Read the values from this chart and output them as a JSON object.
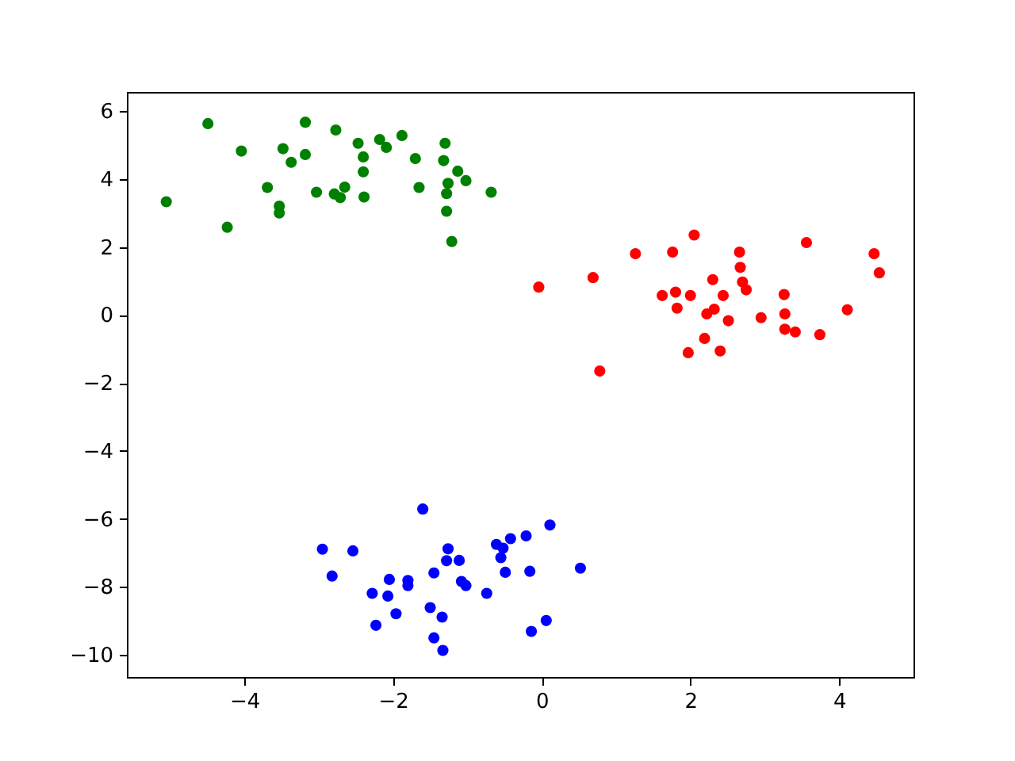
{
  "chart_data": {
    "type": "scatter",
    "xlim": [
      -5.58,
      5.0
    ],
    "ylim": [
      -10.65,
      6.56
    ],
    "xticks": [
      -4,
      -2,
      0,
      2,
      4
    ],
    "yticks": [
      -10,
      -8,
      -6,
      -4,
      -2,
      0,
      2,
      4,
      6
    ],
    "grid": false,
    "legend": false,
    "marker": "circle",
    "series": [
      {
        "color": "#008000",
        "x": [
          -5.05,
          -4.49,
          -4.04,
          -4.23,
          -3.69,
          -3.53,
          -3.53,
          -3.48,
          -3.37,
          -3.18,
          -3.18,
          -3.03,
          -2.77,
          -2.79,
          -2.71,
          -2.65,
          -2.47,
          -2.4,
          -2.4,
          -2.39,
          -2.18,
          -2.09,
          -1.88,
          -1.7,
          -1.65,
          -1.3,
          -1.32,
          -1.13,
          -1.02,
          -1.26,
          -1.28,
          -1.28,
          -1.21,
          -0.68
        ],
        "values": [
          3.33,
          5.63,
          4.82,
          2.58,
          3.75,
          3.2,
          3.0,
          4.89,
          4.49,
          5.67,
          4.72,
          3.61,
          5.44,
          3.56,
          3.45,
          3.76,
          5.05,
          4.65,
          4.21,
          3.47,
          5.16,
          4.93,
          5.28,
          4.6,
          3.75,
          5.05,
          4.54,
          4.23,
          3.95,
          3.87,
          3.57,
          3.05,
          2.16,
          3.61
        ]
      },
      {
        "color": "#ff0000",
        "x": [
          -0.04,
          0.69,
          1.26,
          0.78,
          1.76,
          2.05,
          1.62,
          1.8,
          2.0,
          1.82,
          2.3,
          2.44,
          2.32,
          2.22,
          2.51,
          2.19,
          1.97,
          2.4,
          2.66,
          2.67,
          2.7,
          2.75,
          2.95,
          3.26,
          3.27,
          3.27,
          3.41,
          3.56,
          3.74,
          4.11,
          4.47,
          4.54
        ],
        "values": [
          0.82,
          1.1,
          1.8,
          -1.65,
          1.85,
          2.35,
          0.57,
          0.67,
          0.57,
          0.2,
          1.04,
          0.57,
          0.17,
          0.03,
          -0.17,
          -0.69,
          -1.11,
          -1.06,
          1.85,
          1.4,
          0.97,
          0.74,
          -0.08,
          0.6,
          0.03,
          -0.42,
          -0.5,
          2.13,
          -0.58,
          0.15,
          1.8,
          1.24
        ]
      },
      {
        "color": "#0000ff",
        "x": [
          -1.6,
          -2.95,
          -2.54,
          -2.82,
          -2.28,
          -2.05,
          -2.07,
          -1.8,
          -1.8,
          -2.23,
          -1.96,
          -1.26,
          -1.28,
          -1.11,
          -1.45,
          -1.08,
          -1.02,
          -1.5,
          -1.34,
          -1.45,
          -1.33,
          -0.74,
          -0.61,
          -0.42,
          -0.52,
          -0.55,
          -0.21,
          0.11,
          -0.49,
          -0.16,
          0.52,
          0.06,
          -0.14
        ],
        "values": [
          -5.71,
          -6.89,
          -6.94,
          -7.68,
          -8.19,
          -7.78,
          -8.27,
          -7.81,
          -7.96,
          -9.13,
          -8.79,
          -6.88,
          -7.23,
          -7.22,
          -7.59,
          -7.84,
          -7.96,
          -8.61,
          -8.89,
          -9.5,
          -9.87,
          -8.19,
          -6.75,
          -6.58,
          -6.86,
          -7.14,
          -6.5,
          -6.18,
          -7.57,
          -7.54,
          -7.45,
          -8.99,
          -9.31
        ]
      }
    ]
  }
}
